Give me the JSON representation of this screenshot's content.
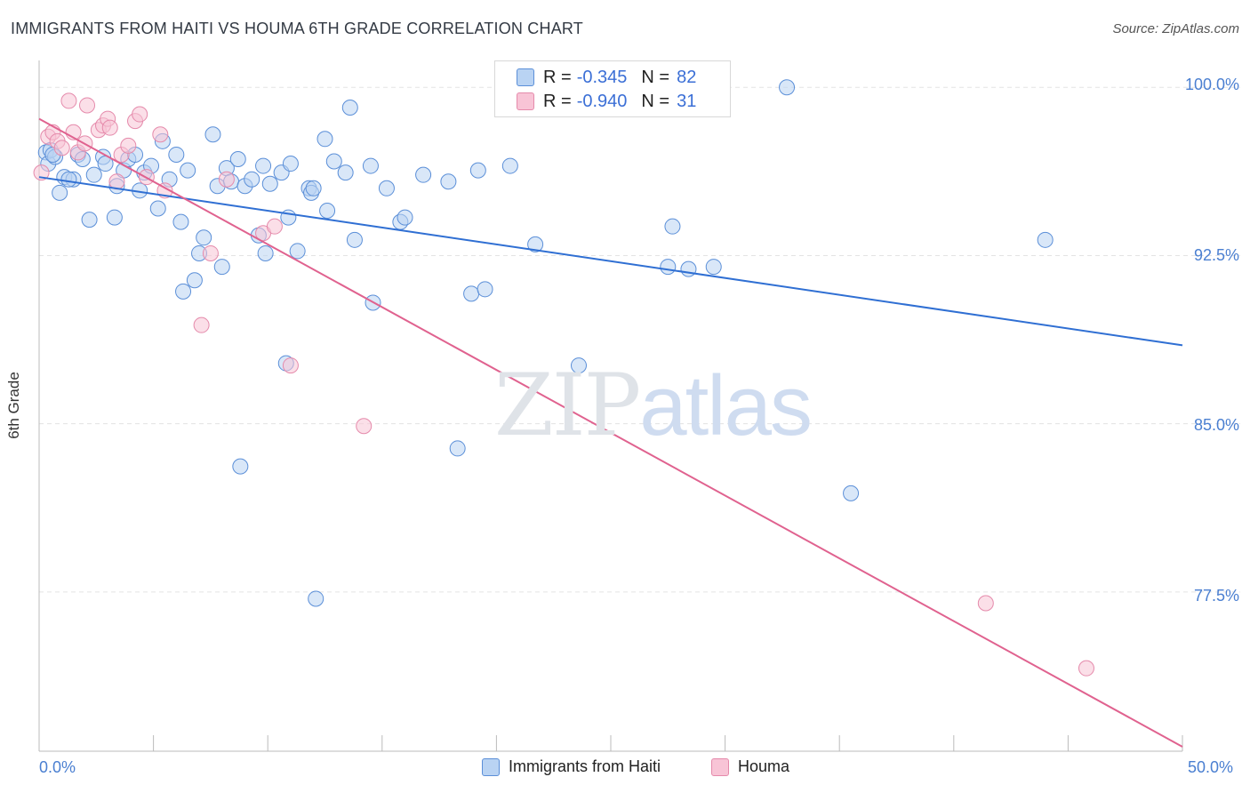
{
  "title": "IMMIGRANTS FROM HAITI VS HOUMA 6TH GRADE CORRELATION CHART",
  "source": "Source: ZipAtlas.com",
  "watermark": {
    "zip": "ZIP",
    "atlas": "atlas"
  },
  "colors": {
    "blue_fill": "#b9d3f3",
    "blue_stroke": "#5b8fd8",
    "blue_line": "#2f6fd3",
    "pink_fill": "#f8c4d6",
    "pink_stroke": "#e58aab",
    "pink_line": "#e0628f",
    "tick_label": "#4a7fd1",
    "grid": "#e3e3e3"
  },
  "stats": [
    {
      "r_label": "R =",
      "r_value": "-0.345",
      "n_label": "N =",
      "n_value": "82",
      "series": "blue"
    },
    {
      "r_label": "R =",
      "r_value": "-0.940",
      "n_label": "N =",
      "n_value": "31",
      "series": "pink"
    }
  ],
  "legend": [
    {
      "label": "Immigrants from Haiti",
      "series": "blue"
    },
    {
      "label": "Houma",
      "series": "pink"
    }
  ],
  "chart_data": {
    "type": "scatter",
    "title": "IMMIGRANTS FROM HAITI VS HOUMA 6TH GRADE CORRELATION CHART",
    "xlabel": "",
    "ylabel": "6th Grade",
    "xlim": [
      0,
      50
    ],
    "ylim": [
      70.4,
      101.2
    ],
    "x_tick_labels": [
      "0.0%",
      "50.0%"
    ],
    "y_ticks": [
      77.5,
      85.0,
      92.5,
      100.0
    ],
    "y_tick_labels": [
      "77.5%",
      "85.0%",
      "92.5%",
      "100.0%"
    ],
    "grid": true,
    "series": [
      {
        "name": "Immigrants from Haiti",
        "color": "blue",
        "trend": {
          "x": [
            0,
            50
          ],
          "y": [
            96.0,
            88.5
          ]
        },
        "points": [
          [
            0.3,
            97.1
          ],
          [
            0.4,
            96.6
          ],
          [
            0.5,
            97.2
          ],
          [
            0.7,
            96.9
          ],
          [
            0.9,
            95.3
          ],
          [
            1.1,
            96.0
          ],
          [
            1.5,
            95.9
          ],
          [
            1.7,
            97.0
          ],
          [
            1.9,
            96.8
          ],
          [
            2.2,
            94.1
          ],
          [
            2.4,
            96.1
          ],
          [
            2.8,
            96.9
          ],
          [
            2.9,
            96.6
          ],
          [
            3.3,
            94.2
          ],
          [
            3.4,
            95.6
          ],
          [
            3.7,
            96.3
          ],
          [
            3.9,
            96.8
          ],
          [
            4.2,
            97.0
          ],
          [
            4.4,
            95.4
          ],
          [
            4.6,
            96.2
          ],
          [
            4.9,
            96.5
          ],
          [
            5.2,
            94.6
          ],
          [
            5.4,
            97.6
          ],
          [
            5.7,
            95.9
          ],
          [
            6.0,
            97.0
          ],
          [
            6.2,
            94.0
          ],
          [
            6.5,
            96.3
          ],
          [
            6.3,
            90.9
          ],
          [
            6.8,
            91.4
          ],
          [
            7.0,
            92.6
          ],
          [
            7.2,
            93.3
          ],
          [
            7.6,
            97.9
          ],
          [
            7.8,
            95.6
          ],
          [
            8.0,
            92.0
          ],
          [
            8.2,
            96.4
          ],
          [
            8.4,
            95.8
          ],
          [
            8.7,
            96.8
          ],
          [
            8.8,
            83.1
          ],
          [
            9.0,
            95.6
          ],
          [
            9.3,
            95.9
          ],
          [
            9.6,
            93.4
          ],
          [
            9.8,
            96.5
          ],
          [
            9.9,
            92.6
          ],
          [
            10.1,
            95.7
          ],
          [
            10.6,
            96.2
          ],
          [
            10.8,
            87.7
          ],
          [
            10.9,
            94.2
          ],
          [
            11.0,
            96.6
          ],
          [
            11.3,
            92.7
          ],
          [
            11.8,
            95.5
          ],
          [
            11.9,
            95.3
          ],
          [
            12.0,
            95.5
          ],
          [
            12.1,
            77.2
          ],
          [
            12.5,
            97.7
          ],
          [
            12.6,
            94.5
          ],
          [
            12.9,
            96.7
          ],
          [
            13.4,
            96.2
          ],
          [
            13.6,
            99.1
          ],
          [
            13.8,
            93.2
          ],
          [
            14.5,
            96.5
          ],
          [
            14.6,
            90.4
          ],
          [
            15.2,
            95.5
          ],
          [
            15.8,
            94.0
          ],
          [
            16.0,
            94.2
          ],
          [
            16.8,
            96.1
          ],
          [
            17.9,
            95.8
          ],
          [
            18.3,
            83.9
          ],
          [
            18.9,
            90.8
          ],
          [
            19.2,
            96.3
          ],
          [
            19.5,
            91.0
          ],
          [
            20.6,
            96.5
          ],
          [
            21.7,
            93.0
          ],
          [
            23.6,
            87.6
          ],
          [
            27.5,
            92.0
          ],
          [
            27.7,
            93.8
          ],
          [
            28.4,
            91.9
          ],
          [
            29.5,
            92.0
          ],
          [
            32.7,
            100.0
          ],
          [
            35.5,
            81.9
          ],
          [
            44.0,
            93.2
          ],
          [
            0.6,
            97.0
          ],
          [
            1.3,
            95.9
          ]
        ]
      },
      {
        "name": "Houma",
        "color": "pink",
        "trend": {
          "x": [
            0,
            50
          ],
          "y": [
            98.6,
            70.6
          ]
        },
        "points": [
          [
            0.1,
            96.2
          ],
          [
            0.4,
            97.8
          ],
          [
            0.6,
            98.0
          ],
          [
            0.8,
            97.6
          ],
          [
            1.0,
            97.3
          ],
          [
            1.3,
            99.4
          ],
          [
            1.5,
            98.0
          ],
          [
            1.7,
            97.1
          ],
          [
            2.0,
            97.5
          ],
          [
            2.1,
            99.2
          ],
          [
            2.6,
            98.1
          ],
          [
            2.8,
            98.3
          ],
          [
            3.0,
            98.6
          ],
          [
            3.1,
            98.2
          ],
          [
            3.4,
            95.8
          ],
          [
            3.6,
            97.0
          ],
          [
            3.9,
            97.4
          ],
          [
            4.2,
            98.5
          ],
          [
            4.4,
            98.8
          ],
          [
            4.7,
            96.0
          ],
          [
            5.3,
            97.9
          ],
          [
            5.5,
            95.4
          ],
          [
            7.1,
            89.4
          ],
          [
            7.5,
            92.6
          ],
          [
            8.2,
            95.9
          ],
          [
            9.8,
            93.5
          ],
          [
            10.3,
            93.8
          ],
          [
            11.0,
            87.6
          ],
          [
            14.2,
            84.9
          ],
          [
            41.4,
            77.0
          ],
          [
            45.8,
            74.1
          ]
        ]
      }
    ]
  }
}
